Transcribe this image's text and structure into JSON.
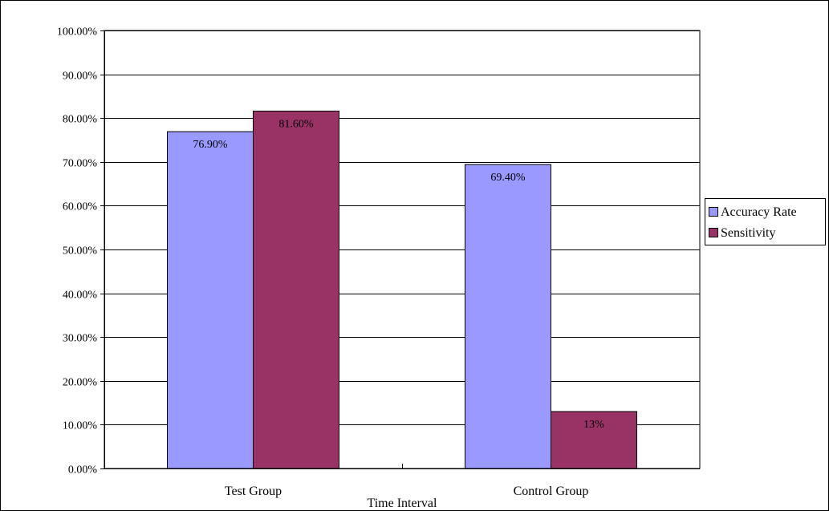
{
  "chart_data": {
    "type": "bar",
    "title": "",
    "xlabel": "Time Interval",
    "ylabel": "",
    "categories": [
      "Test Group",
      "Control Group"
    ],
    "series": [
      {
        "name": "Accuracy Rate",
        "values": [
          0.769,
          0.694
        ],
        "data_labels": [
          "76.90%",
          "69.40%"
        ],
        "color": "#9999ff"
      },
      {
        "name": "Sensitivity",
        "values": [
          0.816,
          0.13
        ],
        "data_labels": [
          "81.60%",
          "13%"
        ],
        "color": "#993366"
      }
    ],
    "ylim": [
      0,
      1
    ],
    "yticks": [
      0,
      0.1,
      0.2,
      0.3,
      0.4,
      0.5,
      0.6,
      0.7,
      0.8,
      0.9,
      1
    ],
    "ytick_labels": [
      "0.00%",
      "10.00%",
      "20.00%",
      "30.00%",
      "40.00%",
      "50.00%",
      "60.00%",
      "70.00%",
      "80.00%",
      "90.00%",
      "100.00%"
    ],
    "grid": true,
    "legend_position": "right"
  }
}
